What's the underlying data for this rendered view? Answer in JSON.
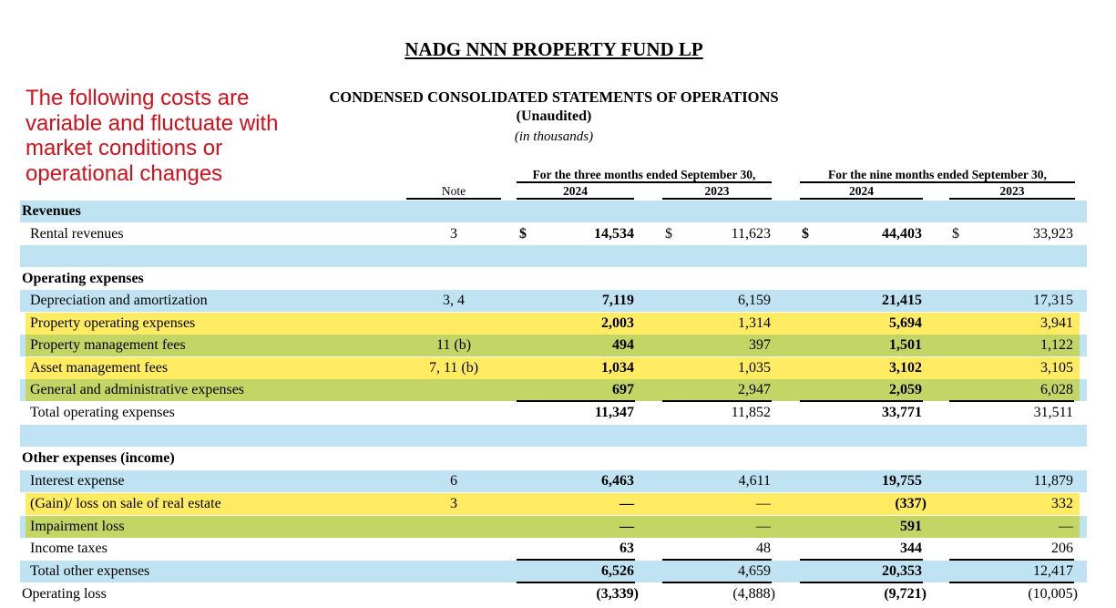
{
  "title": "NADG NNN PROPERTY FUND LP",
  "subtitle": "CONDENSED CONSOLIDATED STATEMENTS OF OPERATIONS",
  "unaudited": "(Unaudited)",
  "units": "(in thousands)",
  "annotation": "The following costs are variable and fluctuate with market conditions or operational changes",
  "annotation_color": "#d0111b",
  "highlight_colors": {
    "yellow": "#ffec62",
    "green": "#c2d565",
    "band": "#bfe3f3"
  },
  "columns": {
    "note": "Note",
    "three_months": "For the three months ended September 30,",
    "nine_months": "For the nine months ended September 30,",
    "years": [
      "2024",
      "2023",
      "2024",
      "2023"
    ]
  },
  "rows": [
    {
      "label": "Revenues",
      "type": "section",
      "band": true
    },
    {
      "label": "Rental revenues",
      "note": "3",
      "values": [
        "14,534",
        "11,623",
        "44,403",
        "33,923"
      ],
      "dollar": true
    },
    {
      "label": "",
      "type": "blank",
      "band": true
    },
    {
      "label": "Operating expenses",
      "type": "section"
    },
    {
      "label": "Depreciation and amortization",
      "note": "3, 4",
      "values": [
        "7,119",
        "6,159",
        "21,415",
        "17,315"
      ],
      "band": true
    },
    {
      "label": "Property operating expenses",
      "note": "",
      "values": [
        "2,003",
        "1,314",
        "5,694",
        "3,941"
      ],
      "highlight": "yellow"
    },
    {
      "label": "Property management fees",
      "note": "11 (b)",
      "values": [
        "494",
        "397",
        "1,501",
        "1,122"
      ],
      "band": true,
      "highlight": "green"
    },
    {
      "label": "Asset management fees",
      "note": "7, 11 (b)",
      "values": [
        "1,034",
        "1,035",
        "3,102",
        "3,105"
      ],
      "highlight": "yellow"
    },
    {
      "label": "General and administrative expenses",
      "note": "",
      "values": [
        "697",
        "2,947",
        "2,059",
        "6,028"
      ],
      "band": true,
      "highlight": "green",
      "underline": true
    },
    {
      "label": "Total operating expenses",
      "note": "",
      "values": [
        "11,347",
        "11,852",
        "33,771",
        "31,511"
      ]
    },
    {
      "label": "",
      "type": "blank",
      "band": true
    },
    {
      "label": "Other expenses (income)",
      "type": "section"
    },
    {
      "label": "Interest expense",
      "note": "6",
      "values": [
        "6,463",
        "4,611",
        "19,755",
        "11,879"
      ],
      "band": true
    },
    {
      "label": "(Gain)/ loss on sale of real estate",
      "note": "3",
      "values": [
        "—",
        "—",
        "(337)",
        "332"
      ],
      "highlight": "yellow"
    },
    {
      "label": "Impairment loss",
      "note": "",
      "values": [
        "—",
        "—",
        "591",
        "—"
      ],
      "band": true,
      "highlight": "green"
    },
    {
      "label": "Income taxes",
      "note": "",
      "values": [
        "63",
        "48",
        "344",
        "206"
      ],
      "underline": true
    },
    {
      "label": "Total other expenses",
      "note": "",
      "values": [
        "6,526",
        "4,659",
        "20,353",
        "12,417"
      ],
      "band": true,
      "underline": true
    },
    {
      "label": "Operating loss",
      "type": "outer",
      "note": "",
      "values": [
        "(3,339)",
        "(4,888)",
        "(9,721)",
        "(10,005)"
      ]
    }
  ],
  "dollar_sign": "$"
}
